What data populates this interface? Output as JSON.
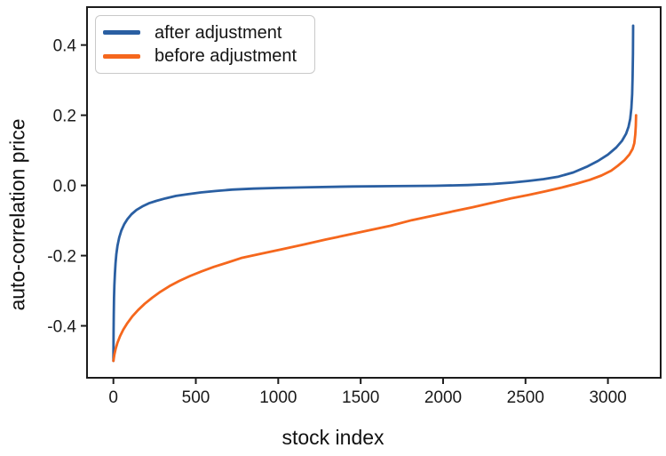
{
  "figure": {
    "background": "#ffffff",
    "axis_color": "#1c1c1c",
    "tick_label_color": "#1a1a1a"
  },
  "legend": {
    "items": [
      {
        "label": "after adjustment",
        "color": "#2a5fa2"
      },
      {
        "label": "before adjustment",
        "color": "#f5671d"
      }
    ]
  },
  "chart_data": {
    "type": "line",
    "title": "",
    "xlabel": "stock index",
    "ylabel": "auto-correlation price",
    "xlim": [
      -160,
      3320
    ],
    "ylim": [
      -0.548,
      0.508
    ],
    "x_ticks": [
      0,
      500,
      1000,
      1500,
      2000,
      2500,
      3000
    ],
    "y_ticks": [
      0.4,
      0.2,
      0.0,
      -0.2,
      -0.4
    ],
    "grid": false,
    "legend_position": "upper left",
    "series": [
      {
        "name": "after adjustment",
        "color": "#2a5fa2",
        "points": [
          [
            0,
            -0.5
          ],
          [
            1,
            -0.42
          ],
          [
            2,
            -0.37
          ],
          [
            4,
            -0.32
          ],
          [
            6,
            -0.285
          ],
          [
            9,
            -0.252
          ],
          [
            13,
            -0.222
          ],
          [
            18,
            -0.196
          ],
          [
            25,
            -0.172
          ],
          [
            35,
            -0.149
          ],
          [
            48,
            -0.129
          ],
          [
            65,
            -0.111
          ],
          [
            85,
            -0.096
          ],
          [
            110,
            -0.082
          ],
          [
            140,
            -0.07
          ],
          [
            175,
            -0.06
          ],
          [
            215,
            -0.051
          ],
          [
            260,
            -0.044
          ],
          [
            315,
            -0.037
          ],
          [
            380,
            -0.03
          ],
          [
            450,
            -0.025
          ],
          [
            530,
            -0.02
          ],
          [
            620,
            -0.016
          ],
          [
            720,
            -0.012
          ],
          [
            850,
            -0.009
          ],
          [
            1000,
            -0.007
          ],
          [
            1200,
            -0.005
          ],
          [
            1450,
            -0.003
          ],
          [
            1700,
            -0.002
          ],
          [
            1950,
            -0.001
          ],
          [
            2150,
            0.001
          ],
          [
            2300,
            0.004
          ],
          [
            2420,
            0.008
          ],
          [
            2520,
            0.013
          ],
          [
            2610,
            0.018
          ],
          [
            2700,
            0.025
          ],
          [
            2790,
            0.037
          ],
          [
            2870,
            0.053
          ],
          [
            2940,
            0.07
          ],
          [
            3000,
            0.088
          ],
          [
            3050,
            0.108
          ],
          [
            3085,
            0.127
          ],
          [
            3110,
            0.147
          ],
          [
            3125,
            0.167
          ],
          [
            3135,
            0.19
          ],
          [
            3142,
            0.22
          ],
          [
            3147,
            0.26
          ],
          [
            3150,
            0.31
          ],
          [
            3152,
            0.375
          ],
          [
            3153,
            0.455
          ]
        ]
      },
      {
        "name": "before adjustment",
        "color": "#f5671d",
        "points": [
          [
            0,
            -0.5
          ],
          [
            6,
            -0.482
          ],
          [
            14,
            -0.465
          ],
          [
            25,
            -0.448
          ],
          [
            40,
            -0.43
          ],
          [
            60,
            -0.411
          ],
          [
            85,
            -0.392
          ],
          [
            115,
            -0.373
          ],
          [
            150,
            -0.355
          ],
          [
            190,
            -0.337
          ],
          [
            235,
            -0.32
          ],
          [
            285,
            -0.303
          ],
          [
            340,
            -0.287
          ],
          [
            400,
            -0.272
          ],
          [
            465,
            -0.258
          ],
          [
            535,
            -0.245
          ],
          [
            610,
            -0.232
          ],
          [
            690,
            -0.22
          ],
          [
            775,
            -0.207
          ],
          [
            900,
            -0.194
          ],
          [
            1030,
            -0.181
          ],
          [
            1160,
            -0.168
          ],
          [
            1290,
            -0.154
          ],
          [
            1420,
            -0.141
          ],
          [
            1550,
            -0.128
          ],
          [
            1680,
            -0.115
          ],
          [
            1810,
            -0.099
          ],
          [
            1940,
            -0.086
          ],
          [
            2060,
            -0.074
          ],
          [
            2180,
            -0.062
          ],
          [
            2300,
            -0.049
          ],
          [
            2410,
            -0.037
          ],
          [
            2520,
            -0.027
          ],
          [
            2620,
            -0.017
          ],
          [
            2720,
            -0.006
          ],
          [
            2810,
            0.005
          ],
          [
            2890,
            0.016
          ],
          [
            2960,
            0.028
          ],
          [
            3020,
            0.042
          ],
          [
            3060,
            0.056
          ],
          [
            3100,
            0.072
          ],
          [
            3130,
            0.088
          ],
          [
            3150,
            0.104
          ],
          [
            3160,
            0.12
          ],
          [
            3166,
            0.145
          ],
          [
            3169,
            0.17
          ],
          [
            3171,
            0.2
          ]
        ]
      }
    ]
  },
  "layout_note": ""
}
